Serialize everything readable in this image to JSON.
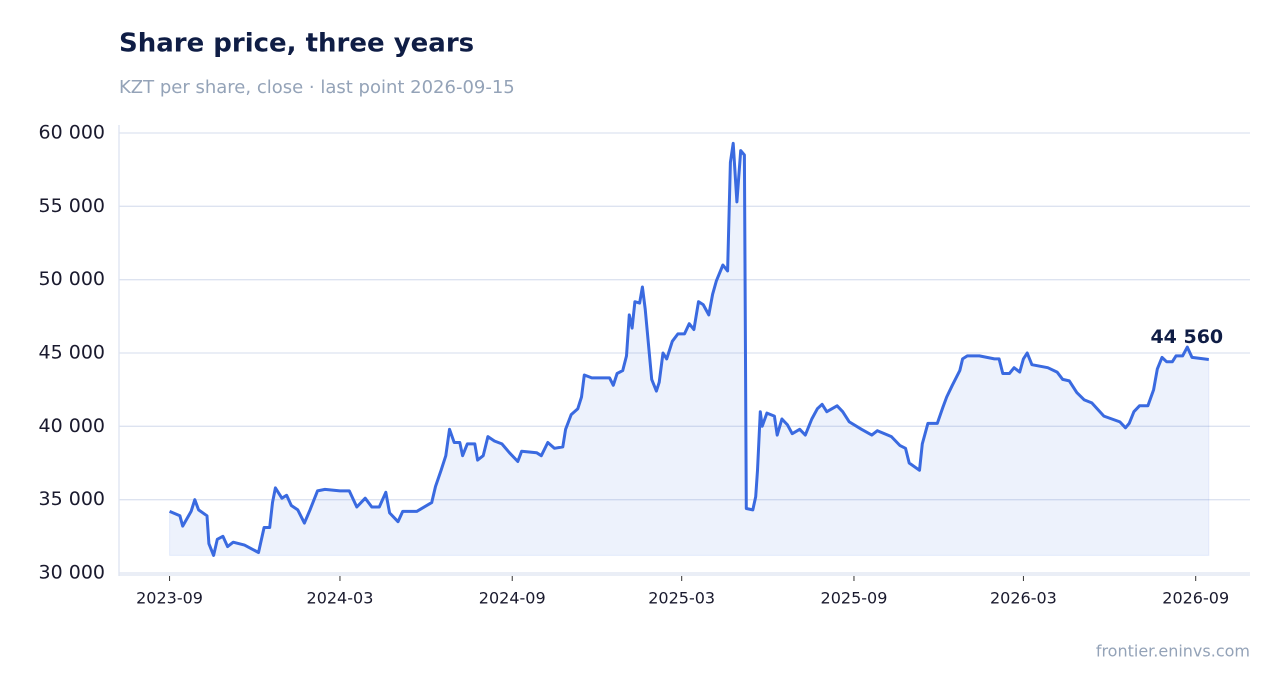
{
  "chart_data": {
    "type": "line",
    "title": "Share price, three years",
    "subtitle": "KZT per share, close · last point 2026-09-15",
    "source": "frontier.eninvs.com",
    "x": [
      "2023-09-01",
      "2023-09-12",
      "2023-09-15",
      "2023-09-24",
      "2023-09-28",
      "2023-10-02",
      "2023-10-11",
      "2023-10-13",
      "2023-10-18",
      "2023-10-22",
      "2023-10-28",
      "2023-11-02",
      "2023-11-08",
      "2023-11-20",
      "2023-12-05",
      "2023-12-11",
      "2023-12-17",
      "2023-12-20",
      "2023-12-23",
      "2023-12-30",
      "2024-01-04",
      "2024-01-09",
      "2024-01-16",
      "2024-01-23",
      "2024-01-29",
      "2024-02-06",
      "2024-02-14",
      "2024-03-01",
      "2024-03-11",
      "2024-03-19",
      "2024-03-28",
      "2024-04-04",
      "2024-04-12",
      "2024-04-19",
      "2024-04-23",
      "2024-05-02",
      "2024-05-07",
      "2024-05-22",
      "2024-06-07",
      "2024-06-11",
      "2024-06-17",
      "2024-06-22",
      "2024-06-26",
      "2024-07-01",
      "2024-07-07",
      "2024-07-10",
      "2024-07-15",
      "2024-07-23",
      "2024-07-26",
      "2024-08-01",
      "2024-08-06",
      "2024-08-13",
      "2024-08-21",
      "2024-08-29",
      "2024-09-07",
      "2024-09-11",
      "2024-09-27",
      "2024-10-02",
      "2024-10-09",
      "2024-10-16",
      "2024-10-25",
      "2024-10-28",
      "2024-11-03",
      "2024-11-10",
      "2024-11-14",
      "2024-11-17",
      "2024-11-25",
      "2024-12-14",
      "2024-12-18",
      "2024-12-22",
      "2024-12-28",
      "2025-01-01",
      "2025-01-04",
      "2025-01-07",
      "2025-01-10",
      "2025-01-15",
      "2025-01-18",
      "2025-01-21",
      "2025-01-28",
      "2025-02-02",
      "2025-02-05",
      "2025-02-09",
      "2025-02-13",
      "2025-02-19",
      "2025-02-25",
      "2025-03-04",
      "2025-03-09",
      "2025-03-14",
      "2025-03-19",
      "2025-03-24",
      "2025-03-30",
      "2025-04-03",
      "2025-04-07",
      "2025-04-14",
      "2025-04-19",
      "2025-04-22",
      "2025-04-25",
      "2025-04-29",
      "2025-05-03",
      "2025-05-07",
      "2025-05-09",
      "2025-05-16",
      "2025-05-19",
      "2025-05-21",
      "2025-05-24",
      "2025-05-26",
      "2025-05-31",
      "2025-06-08",
      "2025-06-11",
      "2025-06-16",
      "2025-06-22",
      "2025-06-27",
      "2025-07-05",
      "2025-07-11",
      "2025-07-18",
      "2025-07-24",
      "2025-07-29",
      "2025-08-03",
      "2025-08-14",
      "2025-08-20",
      "2025-08-27",
      "2025-09-09",
      "2025-09-20",
      "2025-09-26",
      "2025-10-11",
      "2025-10-20",
      "2025-10-26",
      "2025-10-30",
      "2025-11-10",
      "2025-11-13",
      "2025-11-19",
      "2025-11-29",
      "2025-12-05",
      "2025-12-09",
      "2025-12-15",
      "2025-12-23",
      "2025-12-26",
      "2025-12-31",
      "2026-01-13",
      "2026-01-29",
      "2026-02-03",
      "2026-02-07",
      "2026-02-14",
      "2026-02-19",
      "2026-02-25",
      "2026-03-01",
      "2026-03-05",
      "2026-03-10",
      "2026-03-27",
      "2026-04-06",
      "2026-04-12",
      "2026-04-19",
      "2026-04-27",
      "2026-05-05",
      "2026-05-13",
      "2026-05-26",
      "2026-06-12",
      "2026-06-18",
      "2026-06-22",
      "2026-06-27",
      "2026-07-03",
      "2026-07-12",
      "2026-07-18",
      "2026-07-22",
      "2026-07-27",
      "2026-08-01",
      "2026-08-07",
      "2026-08-11",
      "2026-08-18",
      "2026-08-23",
      "2026-08-28",
      "2026-09-15"
    ],
    "series": [
      {
        "name": "Close",
        "color": "#3a6ae0",
        "values": [
          34200,
          33900,
          33200,
          34200,
          35000,
          34300,
          33900,
          32000,
          31200,
          32300,
          32500,
          31800,
          32100,
          31900,
          31400,
          33100,
          33100,
          34800,
          35800,
          35100,
          35300,
          34600,
          34300,
          33400,
          34300,
          35600,
          35700,
          35600,
          35600,
          34500,
          35100,
          34500,
          34500,
          35500,
          34100,
          33500,
          34200,
          34200,
          34800,
          35900,
          37000,
          38000,
          39800,
          38900,
          38900,
          38000,
          38800,
          38800,
          37700,
          38000,
          39300,
          39000,
          38800,
          38200,
          37600,
          38300,
          38200,
          38000,
          38900,
          38500,
          38600,
          39800,
          40800,
          41200,
          42000,
          43500,
          43300,
          43300,
          42800,
          43600,
          43800,
          44800,
          47600,
          46700,
          48500,
          48400,
          49500,
          48000,
          43200,
          42400,
          43000,
          45000,
          44600,
          45800,
          46300,
          46300,
          47000,
          46600,
          48500,
          48300,
          47600,
          49000,
          49900,
          51000,
          50600,
          58000,
          59300,
          55300,
          58800,
          58500,
          34400,
          34300,
          35200,
          37000,
          41000,
          40000,
          40900,
          40700,
          39400,
          40500,
          40100,
          39500,
          39800,
          39400,
          40500,
          41200,
          41500,
          41000,
          41400,
          41000,
          40300,
          39800,
          39400,
          39700,
          39300,
          38700,
          38500,
          37500,
          37000,
          38800,
          40200,
          40200,
          41300,
          42000,
          42800,
          43800,
          44600,
          44800,
          44800,
          44600,
          44600,
          43600,
          43600,
          44000,
          43700,
          44600,
          45000,
          44200,
          44000,
          43700,
          43200,
          43100,
          42300,
          41800,
          41600,
          40700,
          40300,
          39900,
          40200,
          41000,
          41400,
          41400,
          42500,
          43900,
          44700,
          44400,
          44400,
          44800,
          44800,
          45400,
          44700,
          44560
        ]
      }
    ],
    "annotations": [
      {
        "x": "2026-09-15",
        "value": 44560,
        "label": "44 560"
      }
    ],
    "xlim": [
      "2023-07-09",
      "2026-10-29"
    ],
    "xticks": [
      {
        "value": "2023-09-01",
        "label": "2023-09"
      },
      {
        "value": "2024-03-01",
        "label": "2024-03"
      },
      {
        "value": "2024-09-01",
        "label": "2024-09"
      },
      {
        "value": "2025-03-01",
        "label": "2025-03"
      },
      {
        "value": "2025-09-01",
        "label": "2025-09"
      },
      {
        "value": "2026-03-01",
        "label": "2026-03"
      },
      {
        "value": "2026-09-01",
        "label": "2026-09"
      }
    ],
    "ylim": [
      30000,
      60000
    ],
    "yticks": [
      {
        "value": 30000,
        "label": "30 000"
      },
      {
        "value": 35000,
        "label": "35 000"
      },
      {
        "value": 40000,
        "label": "40 000"
      },
      {
        "value": 45000,
        "label": "45 000"
      },
      {
        "value": 50000,
        "label": "50 000"
      },
      {
        "value": 55000,
        "label": "55 000"
      },
      {
        "value": 60000,
        "label": "60 000"
      }
    ],
    "grid": true,
    "area_fill": true
  }
}
